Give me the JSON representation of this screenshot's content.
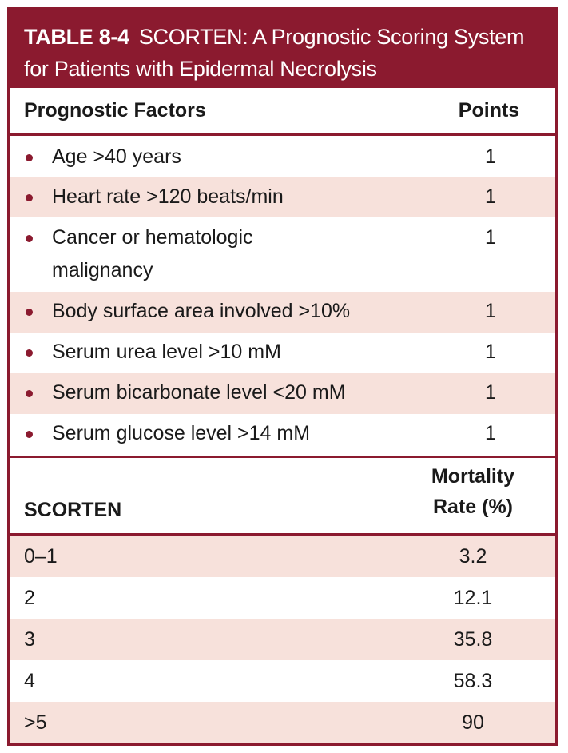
{
  "title": {
    "label": "TABLE 8-4",
    "line1": "SCORTEN: A Prognostic Scoring System",
    "line2": "for Patients with Epidermal Necrolysis"
  },
  "factors_header": {
    "factor": "Prognostic Factors",
    "points": "Points"
  },
  "factors": [
    {
      "line1": "Age >40 years",
      "line2": "",
      "points": "1"
    },
    {
      "line1": "Heart rate >120 beats/min",
      "line2": "",
      "points": "1"
    },
    {
      "line1": "Cancer or hematologic",
      "line2": "malignancy",
      "points": "1"
    },
    {
      "line1": "Body surface area involved >10%",
      "line2": "",
      "points": "1"
    },
    {
      "line1": "Serum urea level >10 mM",
      "line2": "",
      "points": "1"
    },
    {
      "line1": "Serum bicarbonate level <20 mM",
      "line2": "",
      "points": "1"
    },
    {
      "line1": "Serum glucose level >14 mM",
      "line2": "",
      "points": "1"
    }
  ],
  "scorten_header": {
    "score": "SCORTEN",
    "mortality_line1": "Mortality",
    "mortality_line2": "Rate (%)"
  },
  "scorten": [
    {
      "score": "0–1",
      "mortality": "3.2"
    },
    {
      "score": "2",
      "mortality": "12.1"
    },
    {
      "score": "3",
      "mortality": "35.8"
    },
    {
      "score": "4",
      "mortality": "58.3"
    },
    {
      "score": ">5",
      "mortality": "90"
    }
  ],
  "colors": {
    "accent": "#8b1a2f",
    "shade": "#f7e1db"
  }
}
